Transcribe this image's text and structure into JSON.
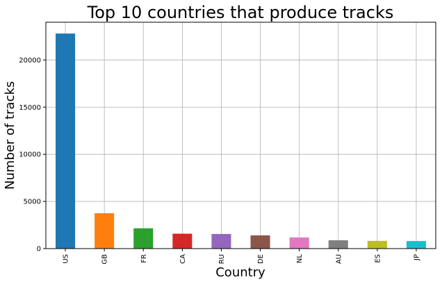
{
  "chart_data": {
    "type": "bar",
    "title": "Top 10 countries that produce tracks",
    "xlabel": "Country",
    "ylabel": "Number of tracks",
    "categories": [
      "US",
      "GB",
      "FR",
      "CA",
      "RU",
      "DE",
      "NL",
      "AU",
      "ES",
      "JP"
    ],
    "values": [
      22800,
      3750,
      2150,
      1580,
      1550,
      1400,
      1180,
      880,
      820,
      800
    ],
    "colors": [
      "#1f77b4",
      "#ff7f0e",
      "#2ca02c",
      "#d62728",
      "#9467bd",
      "#8c564b",
      "#e377c2",
      "#7f7f7f",
      "#bcbd22",
      "#17becf"
    ],
    "ylim": [
      0,
      24000
    ],
    "yticks": [
      0,
      5000,
      10000,
      15000,
      20000
    ],
    "ytick_labels": [
      "0",
      "5000",
      "10000",
      "15000",
      "20000"
    ],
    "grid": true,
    "legend": false
  }
}
